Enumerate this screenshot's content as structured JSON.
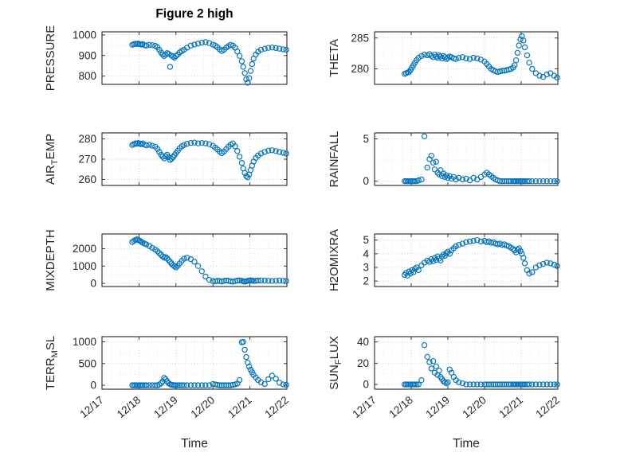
{
  "figure": {
    "title": "Figure 2 high",
    "xlabel": "Time",
    "marker_color": "#0072BD",
    "axis_color": "#262626",
    "grid_color": "#262626",
    "x_tick_labels": [
      "12/17",
      "12/18",
      "12/19",
      "12/20",
      "12/21",
      "12/22"
    ]
  },
  "chart_data": [
    {
      "id": "pressure",
      "type": "scatter",
      "row": 0,
      "col": 0,
      "ylabel_parts": [
        {
          "text": "PRESSURE",
          "sub": false
        }
      ],
      "ylim": [
        760,
        1015
      ],
      "yticks": [
        800,
        900,
        1000
      ],
      "x": [
        0.82,
        0.86,
        0.9,
        0.94,
        0.98,
        1.02,
        1.06,
        1.1,
        1.15,
        1.2,
        1.28,
        1.36,
        1.44,
        1.5,
        1.55,
        1.6,
        1.64,
        1.68,
        1.72,
        1.76,
        1.8,
        1.84,
        1.88,
        1.92,
        1.96,
        2.0,
        2.05,
        2.1,
        2.16,
        2.22,
        2.3,
        2.4,
        2.5,
        2.6,
        2.7,
        2.8,
        2.9,
        3.0,
        3.06,
        3.12,
        3.18,
        3.24,
        3.3,
        3.36,
        3.42,
        3.48,
        3.54,
        3.6,
        3.66,
        3.72,
        3.78,
        3.82,
        3.86,
        3.9,
        3.94,
        3.98,
        4.02,
        4.06,
        4.1,
        4.16,
        4.22,
        4.3,
        4.4,
        4.5,
        4.6,
        4.7,
        4.8,
        4.9,
        4.98
      ],
      "y": [
        952,
        955,
        957,
        956,
        958,
        955,
        953,
        956,
        950,
        948,
        952,
        950,
        947,
        940,
        928,
        915,
        905,
        898,
        905,
        912,
        908,
        845,
        900,
        895,
        890,
        898,
        905,
        915,
        922,
        928,
        938,
        948,
        953,
        958,
        962,
        965,
        960,
        953,
        948,
        940,
        930,
        922,
        928,
        938,
        946,
        952,
        948,
        938,
        920,
        898,
        872,
        845,
        815,
        785,
        768,
        790,
        825,
        858,
        885,
        905,
        918,
        928,
        933,
        937,
        939,
        936,
        933,
        930,
        928
      ]
    },
    {
      "id": "theta",
      "type": "scatter",
      "row": 0,
      "col": 1,
      "ylabel_parts": [
        {
          "text": "THETA",
          "sub": false
        }
      ],
      "ylim": [
        277.5,
        286
      ],
      "yticks": [
        280,
        285
      ],
      "x": [
        0.82,
        0.86,
        0.9,
        0.94,
        0.98,
        1.02,
        1.06,
        1.1,
        1.15,
        1.2,
        1.28,
        1.36,
        1.44,
        1.5,
        1.55,
        1.6,
        1.64,
        1.68,
        1.72,
        1.76,
        1.8,
        1.84,
        1.88,
        1.92,
        1.96,
        2.0,
        2.05,
        2.1,
        2.16,
        2.22,
        2.3,
        2.4,
        2.5,
        2.6,
        2.7,
        2.8,
        2.9,
        3.0,
        3.06,
        3.12,
        3.18,
        3.24,
        3.3,
        3.36,
        3.42,
        3.48,
        3.54,
        3.6,
        3.66,
        3.72,
        3.78,
        3.82,
        3.86,
        3.9,
        3.94,
        3.98,
        4.02,
        4.06,
        4.1,
        4.16,
        4.22,
        4.3,
        4.4,
        4.5,
        4.6,
        4.7,
        4.8,
        4.9,
        4.98
      ],
      "y": [
        279.2,
        279.3,
        279.4,
        279.5,
        279.8,
        280.2,
        280.6,
        281.0,
        281.4,
        281.8,
        282.1,
        282.3,
        282.2,
        282.4,
        282.1,
        281.9,
        282.3,
        282.0,
        281.8,
        282.2,
        282.0,
        281.7,
        282.1,
        281.9,
        281.6,
        281.8,
        282.0,
        281.9,
        281.7,
        281.6,
        281.8,
        281.9,
        281.7,
        281.6,
        281.8,
        281.7,
        281.5,
        281.2,
        280.8,
        280.4,
        280.0,
        279.8,
        279.6,
        279.5,
        279.6,
        279.7,
        279.7,
        279.8,
        279.9,
        280.0,
        280.2,
        280.6,
        281.4,
        282.6,
        283.8,
        284.8,
        285.3,
        284.6,
        283.5,
        282.2,
        281.0,
        280.0,
        279.3,
        278.9,
        278.7,
        279.1,
        279.3,
        278.9,
        278.6
      ]
    },
    {
      "id": "air-temp",
      "type": "scatter",
      "row": 1,
      "col": 0,
      "ylabel_parts": [
        {
          "text": "AIR",
          "sub": false
        },
        {
          "text": "T",
          "sub": true
        },
        {
          "text": "EMP",
          "sub": false
        }
      ],
      "ylim": [
        257,
        283
      ],
      "yticks": [
        260,
        270,
        280
      ],
      "x": [
        0.82,
        0.86,
        0.9,
        0.94,
        0.98,
        1.02,
        1.06,
        1.1,
        1.15,
        1.2,
        1.28,
        1.36,
        1.44,
        1.5,
        1.55,
        1.6,
        1.64,
        1.68,
        1.72,
        1.76,
        1.8,
        1.84,
        1.88,
        1.92,
        1.96,
        2.0,
        2.05,
        2.1,
        2.16,
        2.22,
        2.3,
        2.4,
        2.5,
        2.6,
        2.7,
        2.8,
        2.9,
        3.0,
        3.06,
        3.12,
        3.18,
        3.24,
        3.3,
        3.36,
        3.42,
        3.48,
        3.54,
        3.6,
        3.66,
        3.72,
        3.78,
        3.82,
        3.86,
        3.9,
        3.94,
        3.98,
        4.02,
        4.06,
        4.1,
        4.16,
        4.22,
        4.3,
        4.4,
        4.5,
        4.6,
        4.7,
        4.8,
        4.9,
        4.98
      ],
      "y": [
        277.0,
        277.4,
        277.8,
        277.6,
        278.0,
        277.7,
        277.4,
        277.8,
        277.2,
        276.8,
        277.1,
        276.6,
        276.2,
        275.0,
        273.6,
        272.2,
        271.2,
        270.4,
        271.4,
        272.2,
        271.0,
        269.6,
        270.2,
        271.0,
        272.0,
        273.0,
        274.2,
        275.4,
        276.4,
        277.0,
        277.6,
        278.0,
        278.2,
        277.8,
        278.0,
        277.8,
        277.4,
        276.6,
        275.8,
        274.8,
        273.8,
        273.0,
        273.8,
        275.0,
        276.2,
        277.2,
        277.8,
        276.4,
        274.0,
        271.2,
        268.2,
        265.4,
        263.2,
        261.6,
        261.0,
        262.4,
        264.6,
        266.8,
        268.8,
        270.6,
        271.8,
        272.8,
        273.6,
        274.2,
        274.4,
        274.0,
        273.6,
        273.2,
        272.8
      ]
    },
    {
      "id": "rainfall",
      "type": "scatter",
      "row": 1,
      "col": 1,
      "ylabel_parts": [
        {
          "text": "RAINFALL",
          "sub": false
        }
      ],
      "ylim": [
        -0.5,
        5.7
      ],
      "yticks": [
        0,
        5
      ],
      "x": [
        0.82,
        0.86,
        0.9,
        0.94,
        0.98,
        1.02,
        1.06,
        1.1,
        1.15,
        1.2,
        1.28,
        1.36,
        1.44,
        1.5,
        1.55,
        1.6,
        1.64,
        1.68,
        1.72,
        1.76,
        1.8,
        1.84,
        1.88,
        1.92,
        1.96,
        2.0,
        2.05,
        2.1,
        2.16,
        2.22,
        2.3,
        2.4,
        2.5,
        2.6,
        2.7,
        2.8,
        2.9,
        3.0,
        3.06,
        3.12,
        3.18,
        3.24,
        3.3,
        3.36,
        3.42,
        3.48,
        3.54,
        3.6,
        3.66,
        3.72,
        3.78,
        3.82,
        3.86,
        3.9,
        3.94,
        3.98,
        4.02,
        4.06,
        4.1,
        4.16,
        4.22,
        4.3,
        4.4,
        4.5,
        4.6,
        4.7,
        4.8,
        4.9,
        4.98
      ],
      "y": [
        0,
        0,
        0,
        0,
        0,
        0,
        0,
        0,
        0,
        0.1,
        0.2,
        5.3,
        1.6,
        2.6,
        3.0,
        2.2,
        1.4,
        2.3,
        1.0,
        0.8,
        1.3,
        0.6,
        0.9,
        0.5,
        0.7,
        0.4,
        0.6,
        0.3,
        0.5,
        0.2,
        0.4,
        0.2,
        0.3,
        0.1,
        0.4,
        0.2,
        0.5,
        0.8,
        1.0,
        0.8,
        0.6,
        0.4,
        0.2,
        0.1,
        0,
        0,
        0,
        0,
        0,
        0,
        0,
        0,
        0,
        0,
        0,
        0,
        0,
        0,
        0,
        0,
        0,
        0,
        0,
        0,
        0,
        0,
        0,
        0,
        0
      ]
    },
    {
      "id": "mixdepth",
      "type": "scatter",
      "row": 2,
      "col": 0,
      "ylabel_parts": [
        {
          "text": "MIXDEPTH",
          "sub": false
        }
      ],
      "ylim": [
        -180,
        2850
      ],
      "yticks": [
        0,
        1000,
        2000
      ],
      "x": [
        0.82,
        0.86,
        0.9,
        0.94,
        0.98,
        1.02,
        1.06,
        1.1,
        1.15,
        1.2,
        1.28,
        1.36,
        1.44,
        1.5,
        1.55,
        1.6,
        1.64,
        1.68,
        1.72,
        1.76,
        1.8,
        1.84,
        1.88,
        1.92,
        1.96,
        2.0,
        2.05,
        2.1,
        2.16,
        2.22,
        2.3,
        2.4,
        2.5,
        2.6,
        2.7,
        2.8,
        2.9,
        3.0,
        3.06,
        3.12,
        3.18,
        3.24,
        3.3,
        3.36,
        3.42,
        3.48,
        3.54,
        3.6,
        3.66,
        3.72,
        3.78,
        3.82,
        3.86,
        3.9,
        3.94,
        3.98,
        4.02,
        4.06,
        4.1,
        4.16,
        4.22,
        4.3,
        4.4,
        4.5,
        4.6,
        4.7,
        4.8,
        4.9,
        4.98
      ],
      "y": [
        2380,
        2450,
        2500,
        2540,
        2500,
        2460,
        2400,
        2350,
        2300,
        2250,
        2150,
        2050,
        1950,
        1850,
        1750,
        1650,
        1560,
        1480,
        1520,
        1440,
        1350,
        1250,
        1150,
        1050,
        980,
        920,
        1020,
        1150,
        1300,
        1420,
        1480,
        1400,
        1250,
        1000,
        700,
        400,
        200,
        130,
        120,
        150,
        130,
        110,
        140,
        170,
        150,
        120,
        100,
        130,
        160,
        180,
        150,
        120,
        100,
        120,
        150,
        170,
        180,
        160,
        140,
        150,
        160,
        170,
        160,
        150,
        140,
        150,
        160,
        150,
        140
      ]
    },
    {
      "id": "h2omixra",
      "type": "scatter",
      "row": 2,
      "col": 1,
      "ylabel_parts": [
        {
          "text": "H2OMIXRA",
          "sub": false
        }
      ],
      "ylim": [
        1.6,
        5.45
      ],
      "yticks": [
        2,
        3,
        4,
        5
      ],
      "x": [
        0.82,
        0.86,
        0.9,
        0.94,
        0.98,
        1.02,
        1.06,
        1.1,
        1.15,
        1.2,
        1.28,
        1.36,
        1.44,
        1.5,
        1.55,
        1.6,
        1.64,
        1.68,
        1.72,
        1.76,
        1.8,
        1.84,
        1.88,
        1.92,
        1.96,
        2.0,
        2.05,
        2.1,
        2.16,
        2.22,
        2.3,
        2.4,
        2.5,
        2.6,
        2.7,
        2.8,
        2.9,
        3.0,
        3.06,
        3.12,
        3.18,
        3.24,
        3.3,
        3.36,
        3.42,
        3.48,
        3.54,
        3.6,
        3.66,
        3.72,
        3.78,
        3.82,
        3.86,
        3.9,
        3.94,
        3.98,
        4.02,
        4.06,
        4.1,
        4.16,
        4.22,
        4.3,
        4.4,
        4.5,
        4.6,
        4.7,
        4.8,
        4.9,
        4.98
      ],
      "y": [
        2.45,
        2.6,
        2.4,
        2.7,
        2.55,
        2.8,
        2.65,
        2.9,
        3.0,
        2.8,
        3.15,
        3.35,
        3.5,
        3.4,
        3.6,
        3.45,
        3.7,
        3.55,
        3.8,
        3.65,
        3.5,
        3.8,
        3.95,
        3.85,
        4.05,
        4.15,
        4.0,
        4.25,
        4.4,
        4.55,
        4.65,
        4.75,
        4.85,
        4.9,
        4.95,
        5.0,
        4.9,
        4.95,
        4.85,
        4.9,
        4.8,
        4.85,
        4.75,
        4.7,
        4.75,
        4.65,
        4.7,
        4.6,
        4.55,
        4.45,
        4.35,
        4.25,
        4.1,
        4.3,
        4.4,
        4.2,
        4.0,
        3.7,
        3.3,
        2.8,
        2.55,
        2.65,
        3.0,
        3.15,
        3.25,
        3.35,
        3.3,
        3.2,
        3.1
      ]
    },
    {
      "id": "terr-msl",
      "type": "scatter",
      "row": 3,
      "col": 0,
      "ylabel_parts": [
        {
          "text": "TERR",
          "sub": false
        },
        {
          "text": "M",
          "sub": true
        },
        {
          "text": "SL",
          "sub": false
        }
      ],
      "ylim": [
        -90,
        1120
      ],
      "yticks": [
        0,
        500,
        1000
      ],
      "x": [
        0.82,
        0.86,
        0.9,
        0.94,
        0.98,
        1.02,
        1.06,
        1.1,
        1.15,
        1.2,
        1.28,
        1.36,
        1.44,
        1.5,
        1.55,
        1.6,
        1.64,
        1.68,
        1.72,
        1.76,
        1.8,
        1.84,
        1.88,
        1.92,
        1.96,
        2.0,
        2.05,
        2.1,
        2.16,
        2.22,
        2.3,
        2.4,
        2.5,
        2.6,
        2.7,
        2.8,
        2.9,
        3.0,
        3.06,
        3.12,
        3.18,
        3.24,
        3.3,
        3.36,
        3.42,
        3.48,
        3.54,
        3.6,
        3.66,
        3.72,
        3.78,
        3.82,
        3.86,
        3.9,
        3.94,
        3.98,
        4.02,
        4.06,
        4.1,
        4.16,
        4.22,
        4.3,
        4.4,
        4.5,
        4.6,
        4.7,
        4.8,
        4.9,
        4.98
      ],
      "y": [
        0,
        0,
        0,
        0,
        0,
        0,
        0,
        0,
        0,
        0,
        0,
        0,
        0,
        0,
        15,
        45,
        90,
        170,
        140,
        90,
        50,
        25,
        10,
        5,
        0,
        0,
        0,
        0,
        0,
        0,
        0,
        0,
        0,
        0,
        0,
        0,
        0,
        30,
        20,
        10,
        0,
        0,
        0,
        0,
        0,
        0,
        10,
        20,
        40,
        120,
        990,
        1000,
        820,
        650,
        520,
        430,
        360,
        300,
        240,
        180,
        120,
        70,
        30,
        140,
        220,
        150,
        60,
        20,
        10
      ]
    },
    {
      "id": "sun-flux",
      "type": "scatter",
      "row": 3,
      "col": 1,
      "ylabel_parts": [
        {
          "text": "SUN",
          "sub": false
        },
        {
          "text": "F",
          "sub": true
        },
        {
          "text": "LUX",
          "sub": false
        }
      ],
      "ylim": [
        -4.5,
        45
      ],
      "yticks": [
        0,
        20,
        40
      ],
      "x": [
        0.82,
        0.86,
        0.9,
        0.94,
        0.98,
        1.02,
        1.06,
        1.1,
        1.15,
        1.2,
        1.28,
        1.36,
        1.44,
        1.5,
        1.55,
        1.6,
        1.64,
        1.68,
        1.72,
        1.76,
        1.8,
        1.84,
        1.88,
        1.92,
        1.96,
        2.0,
        2.05,
        2.1,
        2.16,
        2.22,
        2.3,
        2.4,
        2.5,
        2.6,
        2.7,
        2.8,
        2.9,
        3.0,
        3.06,
        3.12,
        3.18,
        3.24,
        3.3,
        3.36,
        3.42,
        3.48,
        3.54,
        3.6,
        3.66,
        3.72,
        3.78,
        3.82,
        3.86,
        3.9,
        3.94,
        3.98,
        4.02,
        4.06,
        4.1,
        4.16,
        4.22,
        4.3,
        4.4,
        4.5,
        4.6,
        4.7,
        4.8,
        4.9,
        4.98
      ],
      "y": [
        0,
        0,
        0,
        0,
        0,
        0,
        0,
        0,
        0,
        0,
        4,
        37,
        26,
        21,
        15,
        22,
        11,
        17,
        9,
        13,
        7,
        5,
        3,
        2,
        1,
        2,
        14,
        11,
        7,
        4,
        2,
        1,
        0,
        0,
        0,
        0,
        0,
        0,
        0,
        0,
        0,
        0,
        0,
        0,
        0,
        0,
        0,
        0,
        0,
        0,
        0,
        0,
        0,
        0,
        0,
        0,
        0,
        0,
        0,
        0,
        0,
        0,
        0,
        0,
        0,
        0,
        0,
        0,
        0
      ]
    }
  ]
}
